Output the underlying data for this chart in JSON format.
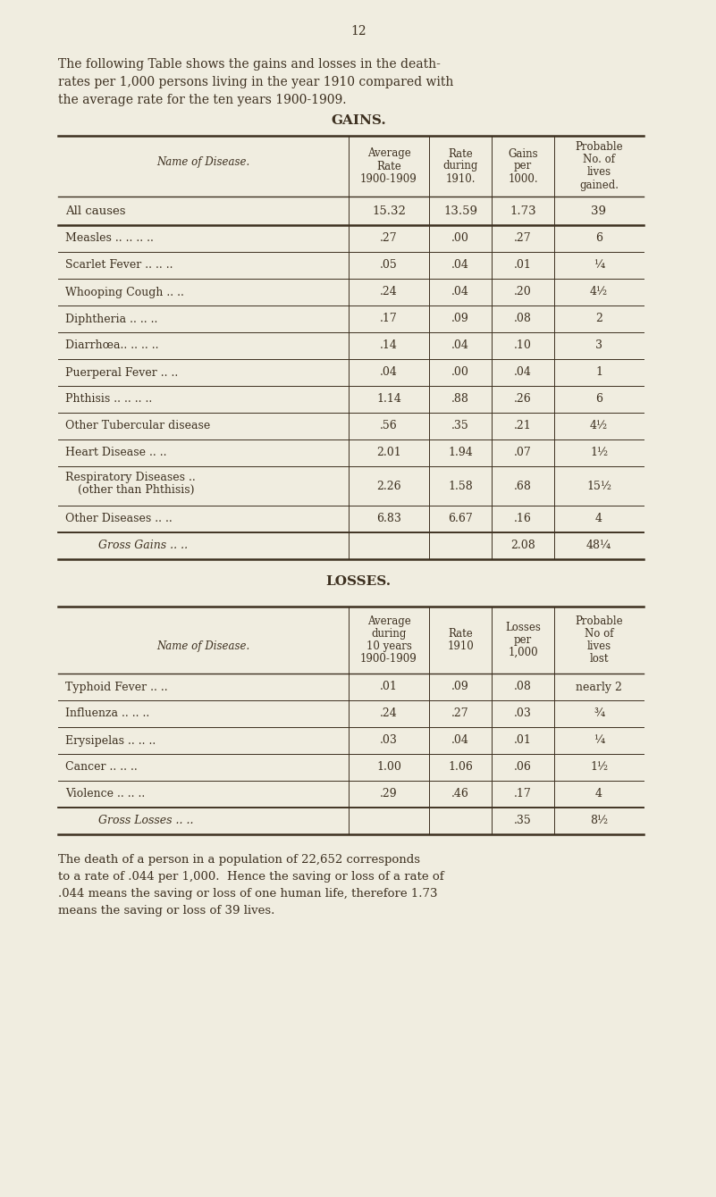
{
  "bg_color": "#f0ede0",
  "text_color": "#3d3020",
  "page_number": "12",
  "intro_line1": "The following Table shows the gains and losses in the death-",
  "intro_line2": "rates per 1,000 persons living in the year 1910 compared with",
  "intro_line3": "the average rate for the ten years 1900-1909.",
  "gains_title": "GAINS.",
  "gains_col_headers": [
    "Average\nRate\n1900-1909",
    "Rate\nduring\n1910.",
    "Gains\nper\n1000.",
    "Probable\nNo. of\nlives\ngained."
  ],
  "gains_name_header": "Name of Disease.",
  "gains_all_causes": [
    "All causes",
    "15.32",
    "13.59",
    "1.73",
    "39"
  ],
  "gains_rows": [
    [
      "Measles .. .. .. ..",
      ".27",
      ".00",
      ".27",
      "6"
    ],
    [
      "Scarlet Fever .. .. ..",
      ".05",
      ".04",
      ".01",
      "¼"
    ],
    [
      "Whooping Cough .. ..",
      ".24",
      ".04",
      ".20",
      "4½"
    ],
    [
      "Diphtheria .. .. ..",
      ".17",
      ".09",
      ".08",
      "2"
    ],
    [
      "Diarrhœa.. .. .. ..",
      ".14",
      ".04",
      ".10",
      "3"
    ],
    [
      "Puerperal Fever .. ..",
      ".04",
      ".00",
      ".04",
      "1"
    ],
    [
      "Phthisis .. .. .. ..",
      "1.14",
      ".88",
      ".26",
      "6"
    ],
    [
      "Other Tubercular disease",
      ".56",
      ".35",
      ".21",
      "4½"
    ],
    [
      "Heart Disease .. ..",
      "2.01",
      "1.94",
      ".07",
      "1½"
    ],
    [
      "Respiratory Diseases ..",
      "2.26",
      "1.58",
      ".68",
      "15½"
    ],
    [
      "Other Diseases .. ..",
      "6.83",
      "6.67",
      ".16",
      "4"
    ]
  ],
  "respiratory_subline": "(other than Phthisis)",
  "gains_totals_label": "Gross Gains .. ..",
  "gains_totals": [
    "",
    "",
    "2.08",
    "48¼"
  ],
  "losses_title": "LOSSES.",
  "losses_col_headers": [
    "Average\nduring\n10 years\n1900-1909",
    "Rate\n1910",
    "Losses\nper\n1,000",
    "Probable\nNo of\nlives\nlost"
  ],
  "losses_name_header": "Name of Disease.",
  "losses_rows": [
    [
      "Typhoid Fever .. ..",
      ".01",
      ".09",
      ".08",
      "nearly 2"
    ],
    [
      "Influenza .. .. ..",
      ".24",
      ".27",
      ".03",
      "¾"
    ],
    [
      "Erysipelas .. .. ..",
      ".03",
      ".04",
      ".01",
      "¼"
    ],
    [
      "Cancer .. .. ..",
      "1.00",
      "1.06",
      ".06",
      "1½"
    ],
    [
      "Violence .. .. ..",
      ".29",
      ".46",
      ".17",
      "4"
    ]
  ],
  "losses_totals_label": "Gross Losses .. ..",
  "losses_totals": [
    "",
    "",
    ".35",
    "8½"
  ],
  "footnote_lines": [
    "The death of a person in a population of 22,652 corresponds",
    "to a rate of .044 per 1,000.  Hence the saving or loss of a rate of",
    ".044 means the saving or loss of one human life, therefore 1.73",
    "means the saving or loss of 39 lives."
  ]
}
